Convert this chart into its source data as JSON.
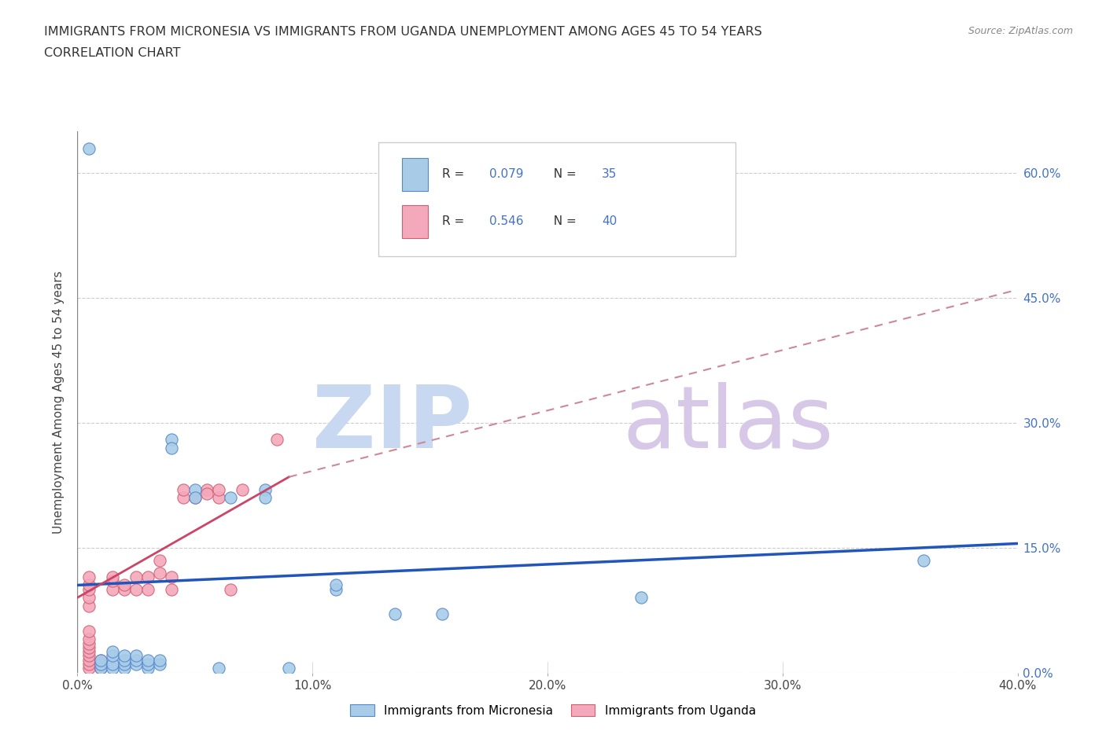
{
  "title_line1": "IMMIGRANTS FROM MICRONESIA VS IMMIGRANTS FROM UGANDA UNEMPLOYMENT AMONG AGES 45 TO 54 YEARS",
  "title_line2": "CORRELATION CHART",
  "source": "Source: ZipAtlas.com",
  "ylabel": "Unemployment Among Ages 45 to 54 years",
  "xlim": [
    0.0,
    0.4
  ],
  "ylim": [
    0.0,
    0.65
  ],
  "xticks": [
    0.0,
    0.1,
    0.2,
    0.3,
    0.4
  ],
  "yticks_right": [
    0.0,
    0.15,
    0.3,
    0.45,
    0.6
  ],
  "R_micronesia": 0.079,
  "N_micronesia": 35,
  "R_uganda": 0.546,
  "N_uganda": 40,
  "color_micronesia": "#a8cce8",
  "color_uganda": "#f4a8bc",
  "trendline_micronesia_color": "#2255bb",
  "trendline_uganda_solid_color": "#cc4466",
  "trendline_uganda_dash_color": "#cc8899",
  "watermark_zip_color": "#c8d8f0",
  "watermark_atlas_color": "#d8c8e8",
  "micronesia_scatter": [
    [
      0.005,
      0.63
    ],
    [
      0.01,
      0.005
    ],
    [
      0.01,
      0.01
    ],
    [
      0.01,
      0.015
    ],
    [
      0.015,
      0.005
    ],
    [
      0.015,
      0.01
    ],
    [
      0.015,
      0.02
    ],
    [
      0.015,
      0.025
    ],
    [
      0.02,
      0.005
    ],
    [
      0.02,
      0.01
    ],
    [
      0.02,
      0.015
    ],
    [
      0.02,
      0.02
    ],
    [
      0.025,
      0.01
    ],
    [
      0.025,
      0.015
    ],
    [
      0.025,
      0.02
    ],
    [
      0.03,
      0.005
    ],
    [
      0.03,
      0.01
    ],
    [
      0.03,
      0.015
    ],
    [
      0.035,
      0.01
    ],
    [
      0.035,
      0.015
    ],
    [
      0.04,
      0.28
    ],
    [
      0.04,
      0.27
    ],
    [
      0.05,
      0.22
    ],
    [
      0.05,
      0.21
    ],
    [
      0.06,
      0.005
    ],
    [
      0.065,
      0.21
    ],
    [
      0.08,
      0.22
    ],
    [
      0.08,
      0.21
    ],
    [
      0.09,
      0.005
    ],
    [
      0.11,
      0.1
    ],
    [
      0.11,
      0.105
    ],
    [
      0.135,
      0.07
    ],
    [
      0.155,
      0.07
    ],
    [
      0.24,
      0.09
    ],
    [
      0.36,
      0.135
    ]
  ],
  "uganda_scatter": [
    [
      0.005,
      0.005
    ],
    [
      0.005,
      0.01
    ],
    [
      0.005,
      0.015
    ],
    [
      0.005,
      0.02
    ],
    [
      0.005,
      0.025
    ],
    [
      0.005,
      0.03
    ],
    [
      0.005,
      0.035
    ],
    [
      0.005,
      0.04
    ],
    [
      0.005,
      0.05
    ],
    [
      0.005,
      0.08
    ],
    [
      0.005,
      0.09
    ],
    [
      0.005,
      0.1
    ],
    [
      0.005,
      0.105
    ],
    [
      0.005,
      0.115
    ],
    [
      0.01,
      0.005
    ],
    [
      0.01,
      0.01
    ],
    [
      0.01,
      0.015
    ],
    [
      0.015,
      0.1
    ],
    [
      0.015,
      0.11
    ],
    [
      0.015,
      0.115
    ],
    [
      0.02,
      0.1
    ],
    [
      0.02,
      0.105
    ],
    [
      0.025,
      0.1
    ],
    [
      0.025,
      0.115
    ],
    [
      0.03,
      0.1
    ],
    [
      0.03,
      0.115
    ],
    [
      0.035,
      0.12
    ],
    [
      0.035,
      0.135
    ],
    [
      0.04,
      0.1
    ],
    [
      0.04,
      0.115
    ],
    [
      0.045,
      0.21
    ],
    [
      0.045,
      0.22
    ],
    [
      0.05,
      0.21
    ],
    [
      0.055,
      0.22
    ],
    [
      0.055,
      0.215
    ],
    [
      0.06,
      0.21
    ],
    [
      0.06,
      0.22
    ],
    [
      0.065,
      0.1
    ],
    [
      0.07,
      0.22
    ],
    [
      0.085,
      0.28
    ]
  ],
  "trendline_micronesia": [
    [
      0.0,
      0.105
    ],
    [
      0.4,
      0.155
    ]
  ],
  "trendline_uganda_solid": [
    [
      0.0,
      0.09
    ],
    [
      0.09,
      0.235
    ]
  ],
  "trendline_uganda_dashed": [
    [
      0.09,
      0.235
    ],
    [
      0.4,
      0.46
    ]
  ]
}
